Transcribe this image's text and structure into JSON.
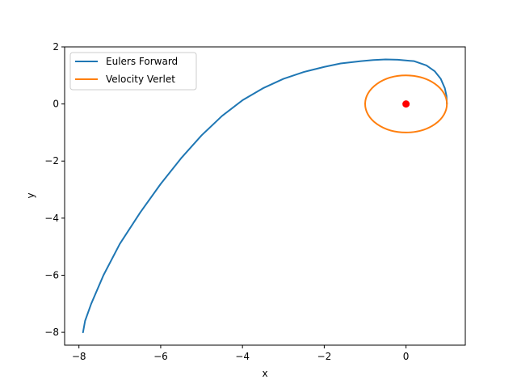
{
  "chart_data": {
    "type": "line",
    "title": "",
    "xlabel": "x",
    "ylabel": "y",
    "xlim": [
      -8.35,
      1.45
    ],
    "ylim": [
      -8.45,
      2.0
    ],
    "xticks": [
      -8,
      -6,
      -4,
      -2,
      0
    ],
    "yticks": [
      2,
      0,
      -2,
      -4,
      -6,
      -8
    ],
    "xtick_labels": [
      "−8",
      "−6",
      "−4",
      "−2",
      "0"
    ],
    "ytick_labels": [
      "2",
      "0",
      "−2",
      "−4",
      "−6",
      "−8"
    ],
    "grid": false,
    "legend_position": "top-left",
    "series": [
      {
        "name": "Eulers Forward",
        "color": "#1f77b4",
        "x": [
          1.0,
          0.99,
          0.95,
          0.85,
          0.7,
          0.5,
          0.2,
          -0.2,
          -0.5,
          -0.8,
          -1.1,
          -1.6,
          -2.0,
          -2.5,
          -3.0,
          -3.5,
          -4.0,
          -4.5,
          -5.0,
          -5.5,
          -6.0,
          -6.5,
          -7.0,
          -7.4,
          -7.7,
          -7.85,
          -7.9
        ],
        "y": [
          0.0,
          0.28,
          0.55,
          0.88,
          1.15,
          1.35,
          1.5,
          1.55,
          1.56,
          1.54,
          1.5,
          1.42,
          1.3,
          1.12,
          0.88,
          0.55,
          0.13,
          -0.42,
          -1.1,
          -1.9,
          -2.8,
          -3.8,
          -4.9,
          -6.0,
          -7.0,
          -7.6,
          -8.0
        ]
      },
      {
        "name": "Velocity Verlet",
        "color": "#ff7f0e",
        "shape": "circle",
        "center": [
          0,
          0
        ],
        "radius": 1.0
      }
    ],
    "points": [
      {
        "x": 0,
        "y": 0,
        "color": "#ff0000"
      }
    ]
  }
}
